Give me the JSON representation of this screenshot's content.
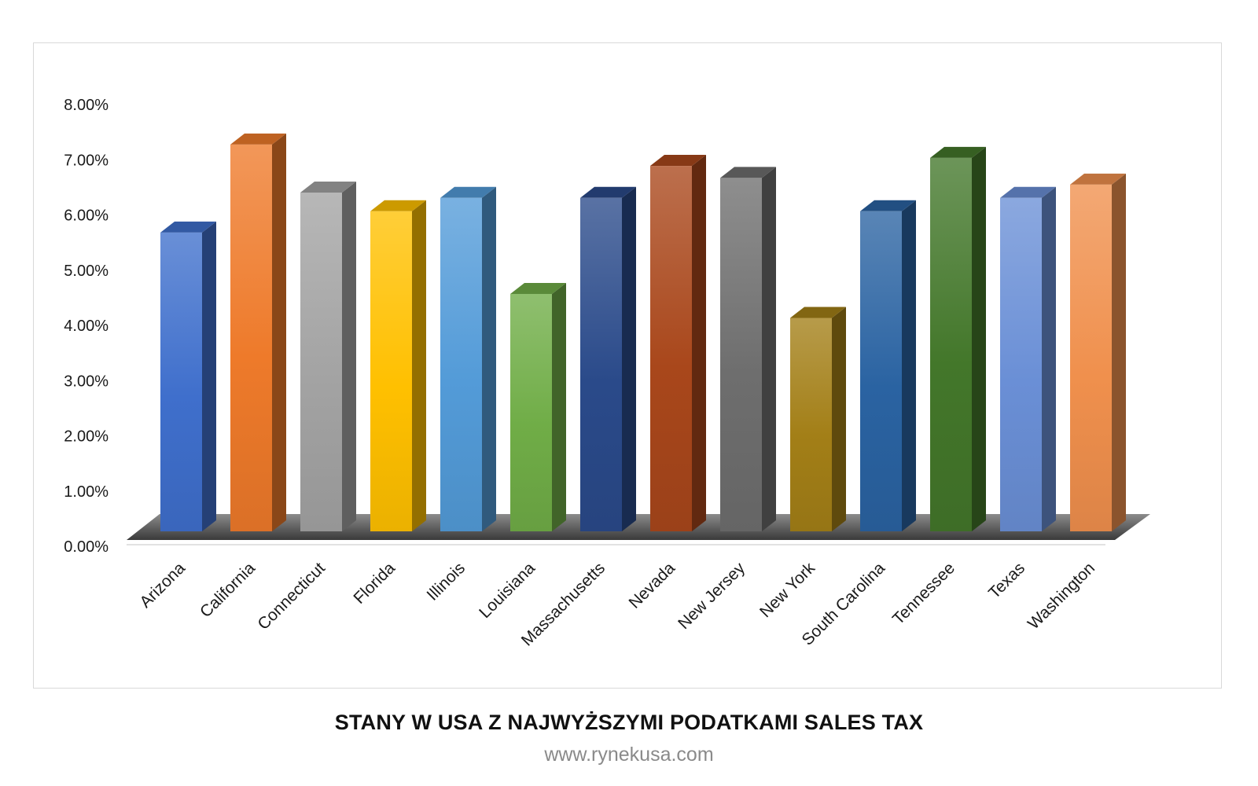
{
  "chart_data": {
    "type": "bar",
    "title": "STANY W USA Z NAJWYŻSZYMI PODATKAMI SALES TAX",
    "subtitle": "www.rynekusa.com",
    "xlabel": "",
    "ylabel": "",
    "ylim": [
      0,
      0.08
    ],
    "y_ticks": [
      "0.00%",
      "1.00%",
      "2.00%",
      "3.00%",
      "4.00%",
      "5.00%",
      "6.00%",
      "7.00%",
      "8.00%"
    ],
    "grid": false,
    "legend": "none",
    "style": "3d-column",
    "categories": [
      "Arizona",
      "California",
      "Connecticut",
      "Florida",
      "Illinois",
      "Louisiana",
      "Massachusetts",
      "Nevada",
      "New Jersey",
      "New York",
      "South Carolina",
      "Tennessee",
      "Texas",
      "Washington"
    ],
    "values": [
      0.056,
      0.0725,
      0.0635,
      0.06,
      0.0625,
      0.0445,
      0.0625,
      0.0685,
      0.06625,
      0.04,
      0.06,
      0.07,
      0.0625,
      0.065
    ],
    "colors": [
      "#3f6fcc",
      "#ee7a2a",
      "#a3a3a3",
      "#ffc000",
      "#539bd8",
      "#70ad47",
      "#2a4a8a",
      "#a9471b",
      "#6e6e6e",
      "#a37f17",
      "#2a63a2",
      "#43772a",
      "#6a8fd6",
      "#f0904d"
    ]
  },
  "footer": {
    "title": "STANY W USA Z NAJWYŻSZYMI PODATKAMI SALES TAX",
    "url": "www.rynekusa.com"
  }
}
